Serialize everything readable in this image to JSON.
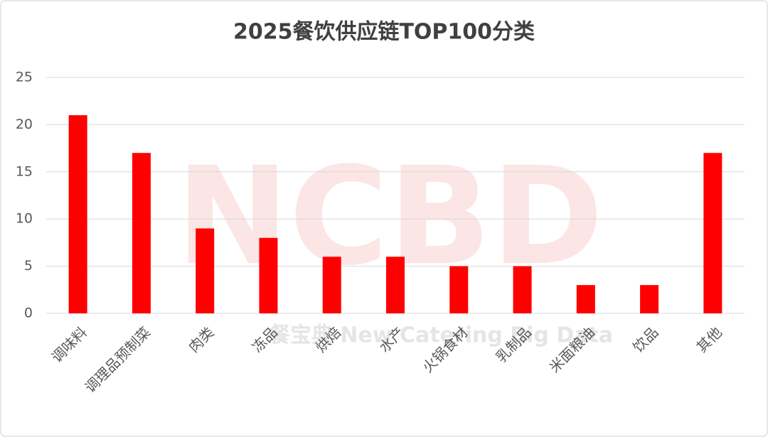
{
  "chart_data": {
    "type": "bar",
    "title": "2025餐饮供应链TOP100分类",
    "categories": [
      "调味料",
      "调理品预制菜",
      "肉类",
      "冻品",
      "烘焙",
      "水产",
      "火锅食材",
      "乳制品",
      "米面粮油",
      "饮品",
      "其他"
    ],
    "values": [
      21,
      17,
      9,
      8,
      6,
      6,
      5,
      5,
      3,
      3,
      17
    ],
    "color": "#ff0000",
    "ylim": [
      0,
      25
    ],
    "yticks": [
      0,
      5,
      10,
      15,
      20,
      25
    ],
    "grid": true,
    "watermark": "NCBD",
    "watermark_caption": "餐宝典 New Catering Big Data"
  }
}
